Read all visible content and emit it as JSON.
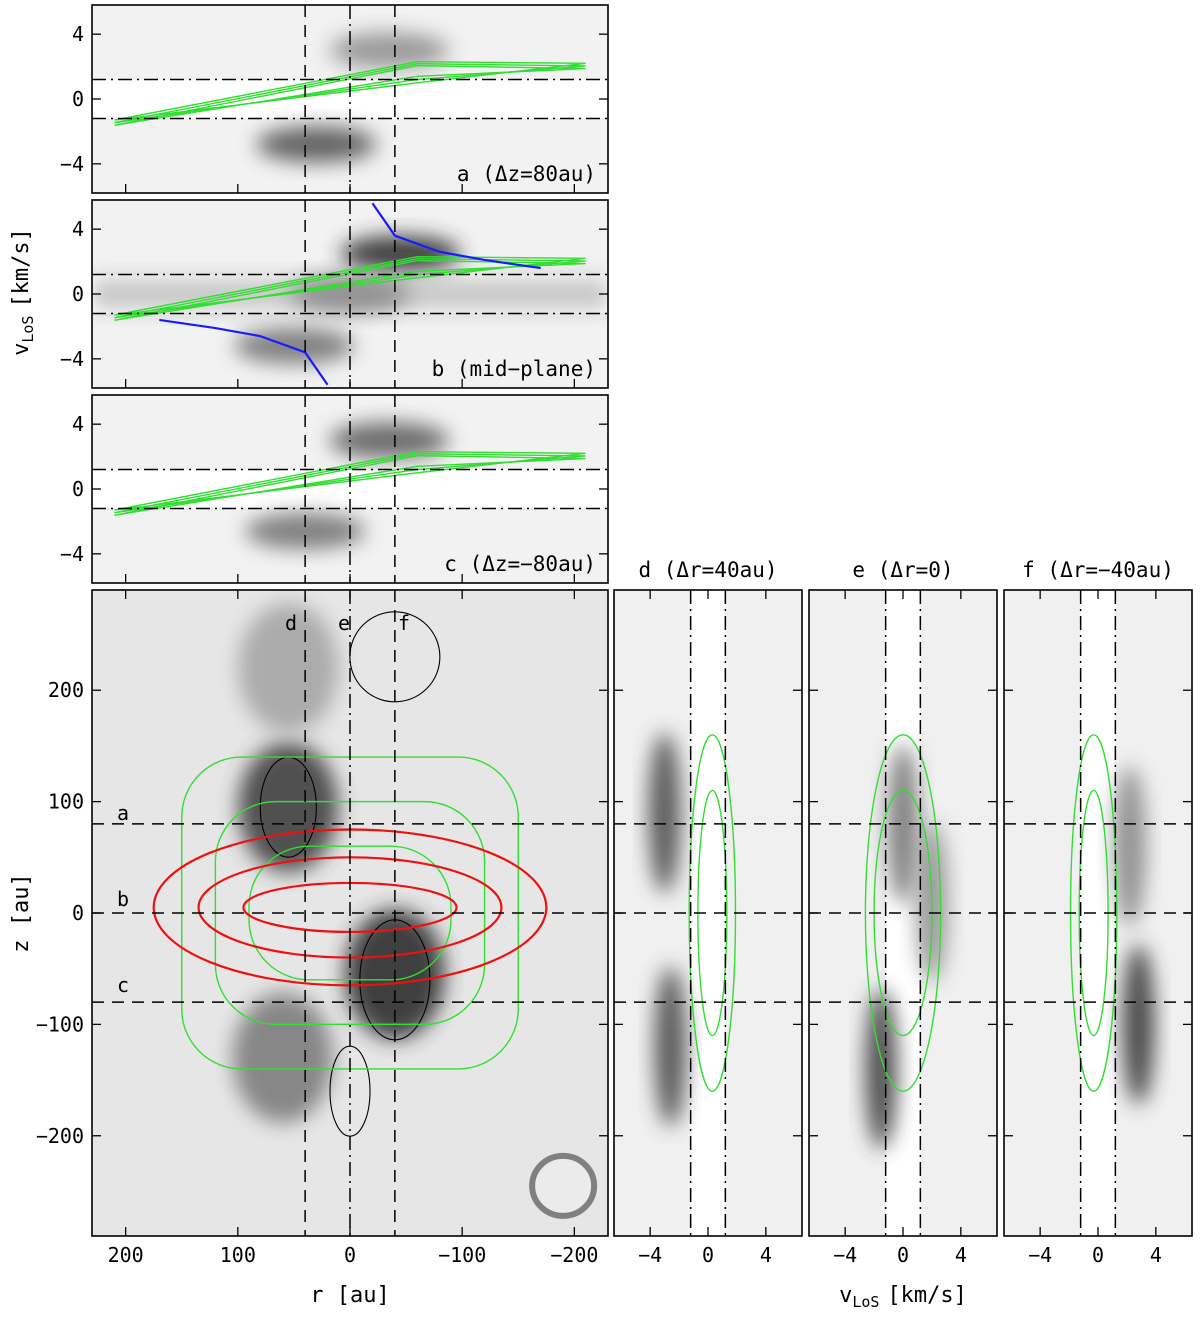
{
  "chart_data": [
    {
      "id": "a",
      "type": "heatmap",
      "title": "a (Δz=80au)",
      "x": "r [au]",
      "ylabel": "",
      "xlim": [
        230,
        -230
      ],
      "ylim": [
        -5.8,
        5.8
      ],
      "yticks": [
        -4,
        0,
        4
      ],
      "ytick_labels": [
        "−4",
        "0",
        "4"
      ],
      "vlines": [
        40,
        0,
        -40
      ],
      "hlines": [
        1.2,
        -1.2
      ],
      "emission_blobs": [
        {
          "r": 30,
          "v": -2.8,
          "peak": 0.75
        },
        {
          "r": -35,
          "v": 3.0,
          "peak": 0.45
        }
      ],
      "model_contours": "green",
      "colors": {
        "model": "#33dd33",
        "contour": "#000000"
      }
    },
    {
      "id": "b",
      "type": "heatmap",
      "title": "b (mid−plane)",
      "ylabel": "vLoS [km/s]",
      "xlim": [
        230,
        -230
      ],
      "ylim": [
        -5.8,
        5.8
      ],
      "yticks": [
        -4,
        0,
        4
      ],
      "ytick_labels": [
        "−4",
        "0",
        "4"
      ],
      "vlines": [
        40,
        0,
        -40
      ],
      "hlines": [
        1.2,
        -1.2
      ],
      "emission_blobs": [
        {
          "r": -45,
          "v": 2.5,
          "peak": 0.95
        },
        {
          "r": 50,
          "v": -3.2,
          "peak": 0.6
        },
        {
          "r": 0,
          "v": 0,
          "peak": 0.55
        }
      ],
      "keplerian_curves": [
        {
          "r": [
            -20,
            -40,
            -80,
            -120,
            -170
          ],
          "v": [
            5.6,
            3.6,
            2.6,
            2.1,
            1.6
          ]
        },
        {
          "r": [
            170,
            120,
            80,
            40,
            20
          ],
          "v": [
            -1.6,
            -2.1,
            -2.6,
            -3.6,
            -5.6
          ]
        }
      ],
      "colors": {
        "model": "#33dd33",
        "kepler": "#1a1aff"
      }
    },
    {
      "id": "c",
      "type": "heatmap",
      "title": "c (Δz=−80au)",
      "ylabel": "",
      "xlim": [
        230,
        -230
      ],
      "ylim": [
        -5.8,
        5.8
      ],
      "yticks": [
        -4,
        0,
        4
      ],
      "ytick_labels": [
        "−4",
        "0",
        "4"
      ],
      "vlines": [
        40,
        0,
        -40
      ],
      "hlines": [
        1.2,
        -1.2
      ],
      "emission_blobs": [
        {
          "r": -35,
          "v": 3.0,
          "peak": 0.7
        },
        {
          "r": 40,
          "v": -2.6,
          "peak": 0.6
        }
      ],
      "colors": {
        "model": "#33dd33"
      }
    },
    {
      "id": "main",
      "type": "heatmap",
      "xlabel": "r [au]",
      "ylabel": "z [au]",
      "xlim": [
        230,
        -230
      ],
      "ylim": [
        -290,
        290
      ],
      "xticks": [
        200,
        100,
        0,
        -100,
        -200
      ],
      "xtick_labels": [
        "200",
        "100",
        "0",
        "−100",
        "−200"
      ],
      "yticks": [
        -200,
        -100,
        0,
        100,
        200
      ],
      "ytick_labels": [
        "−200",
        "−100",
        "0",
        "100",
        "200"
      ],
      "cut_labels_v": [
        "d",
        "e",
        "f"
      ],
      "cut_labels_h": [
        "a",
        "b",
        "c"
      ],
      "vlines": [
        40,
        0,
        -40
      ],
      "hlines": [
        80,
        0,
        -80
      ],
      "emission_blobs": [
        {
          "r": 55,
          "z": 95,
          "peak": 0.85
        },
        {
          "r": -40,
          "z": -55,
          "peak": 0.95
        },
        {
          "r": 60,
          "z": -130,
          "peak": 0.55
        },
        {
          "r": 55,
          "z": 220,
          "peak": 0.35
        }
      ],
      "red_contours": "disk",
      "beam": "ellipse",
      "colors": {
        "disk": "#ee1111",
        "model": "#33dd33",
        "beam": "#808080"
      }
    },
    {
      "id": "d",
      "type": "heatmap",
      "title": "d (Δr=40au)",
      "xlim": [
        -6.5,
        6.5
      ],
      "ylim": [
        -290,
        290
      ],
      "xticks": [
        -4,
        0,
        4
      ],
      "xtick_labels": [
        "−4",
        "0",
        "4"
      ],
      "vlines": [
        -1.2,
        1.2
      ],
      "hlines": [
        80,
        0,
        -80
      ],
      "emission_blobs": [
        {
          "v": -3.0,
          "z": 90,
          "peak": 0.8
        },
        {
          "v": -2.6,
          "z": -120,
          "peak": 0.8
        }
      ]
    },
    {
      "id": "e",
      "type": "heatmap",
      "title": "e (Δr=0)",
      "xlabel": "vLoS [km/s]",
      "xlim": [
        -6.5,
        6.5
      ],
      "ylim": [
        -290,
        290
      ],
      "xticks": [
        -4,
        0,
        4
      ],
      "xtick_labels": [
        "−4",
        "0",
        "4"
      ],
      "vlines": [
        -1.2,
        1.2
      ],
      "hlines": [
        80,
        0,
        -80
      ],
      "emission_blobs": [
        {
          "v": -1.5,
          "z": -140,
          "peak": 0.85
        },
        {
          "v": 0,
          "z": 80,
          "peak": 0.6
        },
        {
          "v": 2.0,
          "z": 10,
          "peak": 0.45
        }
      ]
    },
    {
      "id": "f",
      "type": "heatmap",
      "title": "f (Δr=−40au)",
      "xlim": [
        -6.5,
        6.5
      ],
      "ylim": [
        -290,
        290
      ],
      "xticks": [
        -4,
        0,
        4
      ],
      "xtick_labels": [
        "−4",
        "0",
        "4"
      ],
      "vlines": [
        -1.2,
        1.2
      ],
      "hlines": [
        80,
        0,
        -80
      ],
      "emission_blobs": [
        {
          "v": 2.8,
          "z": -100,
          "peak": 0.9
        },
        {
          "v": 2.2,
          "z": 60,
          "peak": 0.5
        }
      ]
    }
  ],
  "labels": {
    "title_a": "a (Δz=80au)",
    "title_b": "b (mid−plane)",
    "title_c": "c (Δz=−80au)",
    "title_d": "d (Δr=40au)",
    "title_e": "e (Δr=0)",
    "title_f": "f (Δr=−40au)",
    "vlos_v": "v",
    "vlos_sub": "LoS",
    "vlos_unit": "[km/s]",
    "z_label": "z [au]",
    "r_label": "r [au]",
    "cut_d": "d",
    "cut_e": "e",
    "cut_f": "f",
    "cut_a": "a",
    "cut_b": "b",
    "cut_c": "c"
  }
}
